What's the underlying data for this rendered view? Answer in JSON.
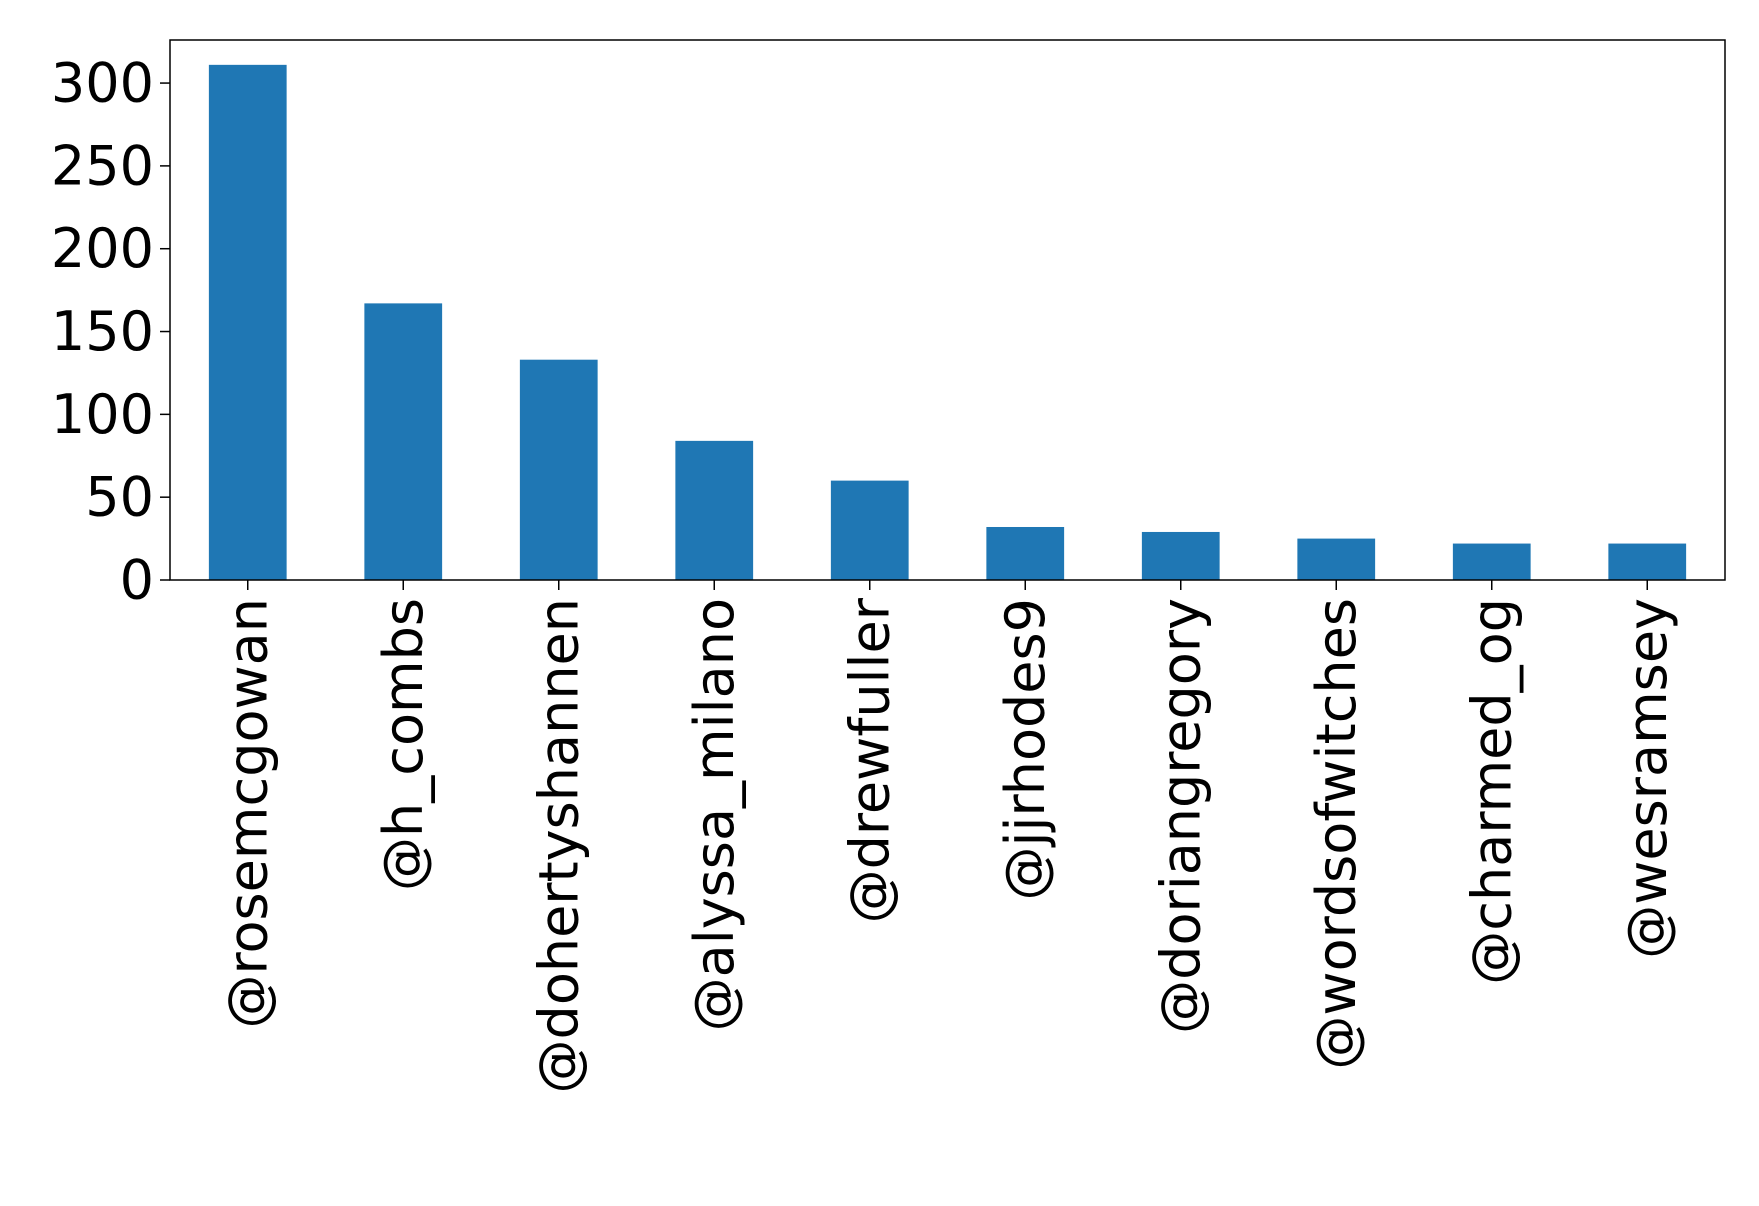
{
  "chart_data": {
    "type": "bar",
    "title": "",
    "xlabel": "",
    "ylabel": "",
    "categories": [
      "@rosemcgowan",
      "@h_combs",
      "@dohertyshannen",
      "@alyssa_milano",
      "@drewfuller",
      "@jjrhodes9",
      "@doriangregory",
      "@wordsofwitches",
      "@charmed_og",
      "@wesramsey"
    ],
    "values": [
      311,
      167,
      133,
      84,
      60,
      32,
      29,
      25,
      22,
      22
    ],
    "ylim": [
      0,
      326
    ],
    "yticks": [
      0,
      50,
      100,
      150,
      200,
      250,
      300
    ],
    "ytick_labels": [
      "0",
      "50",
      "100",
      "150",
      "200",
      "250",
      "300"
    ],
    "grid": false,
    "legend": "none",
    "colors": {
      "bar": "#1f77b4",
      "axis": "#000000",
      "background": "#ffffff"
    }
  }
}
